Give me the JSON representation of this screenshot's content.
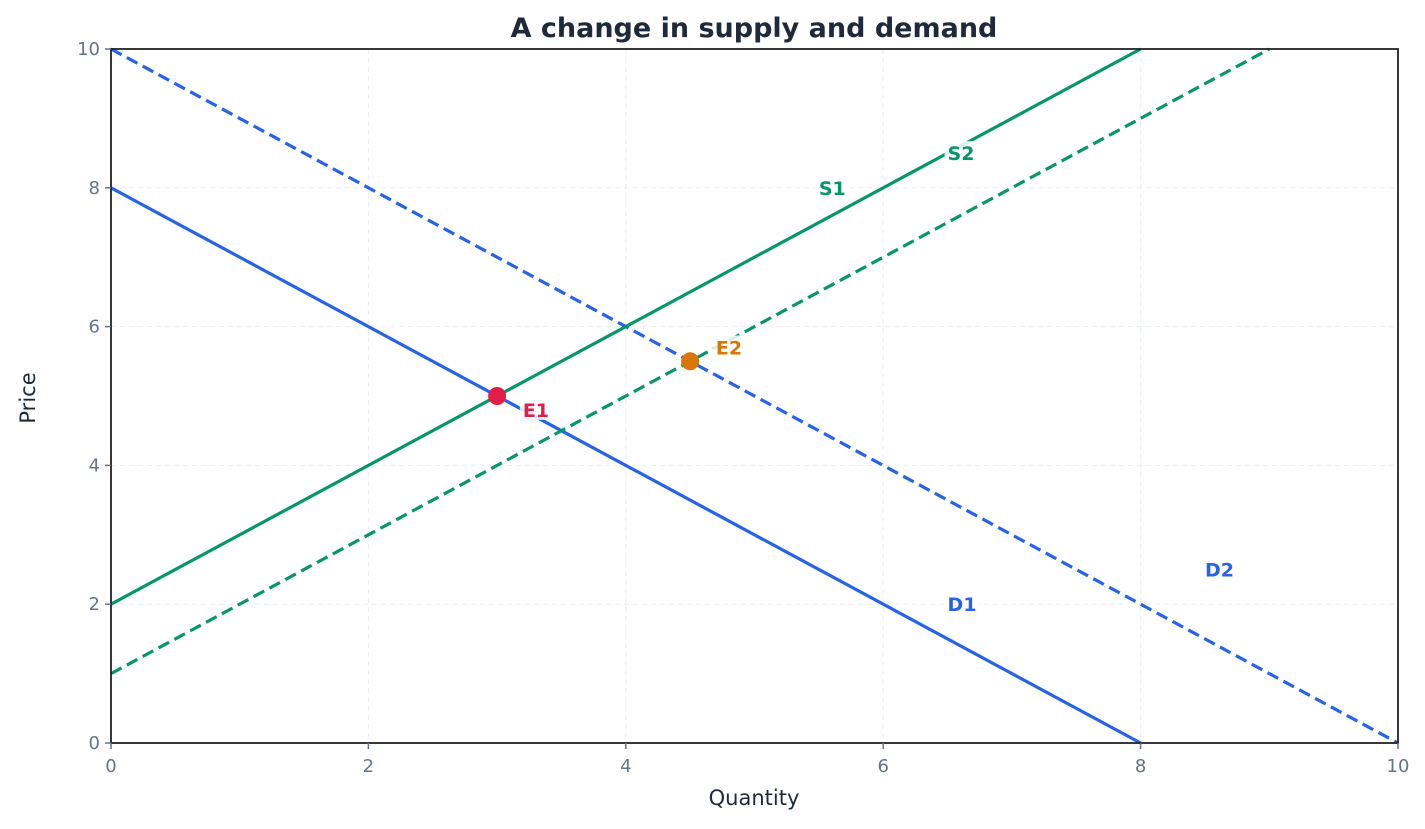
{
  "chart_data": {
    "type": "line",
    "title": "A change in supply and demand",
    "xlabel": "Quantity",
    "ylabel": "Price",
    "xlim": [
      0,
      10
    ],
    "ylim": [
      0,
      10
    ],
    "xticks": [
      0,
      2,
      4,
      6,
      8,
      10
    ],
    "yticks": [
      0,
      2,
      4,
      6,
      8,
      10
    ],
    "grid": true,
    "series": [
      {
        "name": "D1",
        "style": "solid",
        "color": "#2563eb",
        "points": [
          [
            0,
            8
          ],
          [
            8,
            0
          ]
        ],
        "label_pos": [
          6.5,
          2.0
        ]
      },
      {
        "name": "D2",
        "style": "dashed",
        "color": "#2563eb",
        "points": [
          [
            0,
            10
          ],
          [
            10,
            0
          ]
        ],
        "label_pos": [
          8.5,
          2.5
        ]
      },
      {
        "name": "S1",
        "style": "solid",
        "color": "#059669",
        "points": [
          [
            0,
            2
          ],
          [
            8,
            10
          ]
        ],
        "label_pos": [
          5.5,
          8.0
        ]
      },
      {
        "name": "S2",
        "style": "dashed",
        "color": "#059669",
        "points": [
          [
            0,
            1
          ],
          [
            9,
            10
          ]
        ],
        "label_pos": [
          6.5,
          8.5
        ]
      }
    ],
    "points": [
      {
        "name": "E1",
        "x": 3,
        "y": 5,
        "color": "#e11d48",
        "label_pos": [
          3.2,
          4.8
        ]
      },
      {
        "name": "E2",
        "x": 4.5,
        "y": 5.5,
        "color": "#d97706",
        "label_pos": [
          4.7,
          5.7
        ]
      }
    ]
  }
}
